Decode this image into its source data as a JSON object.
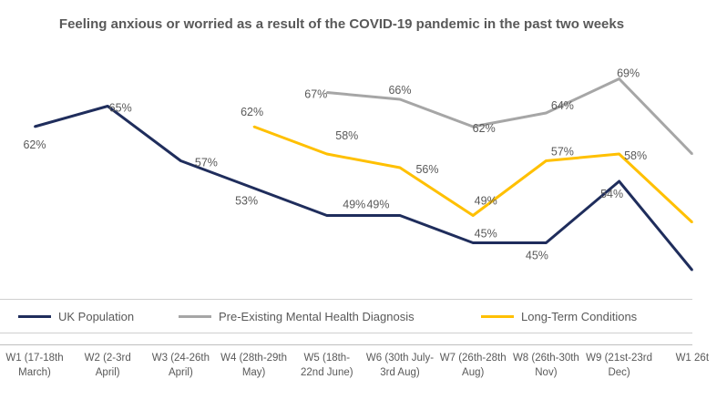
{
  "chart_data": {
    "type": "line",
    "title": "Feeling anxious or worried as a result of the COVID-19 pandemic in the past two weeks",
    "categories": [
      "W1 (17-18th March)",
      "W2 (2-3rd April)",
      "W3 (24-26th April)",
      "W4 (28th-29th May)",
      "W5 (18th-22nd June)",
      "W6 (30th July-3rd Aug)",
      "W7 (26th-28th Aug)",
      "W8 (26th-30th Nov)",
      "W9 (21st-23rd Dec)",
      "W1 26t"
    ],
    "series": [
      {
        "name": "UK Population",
        "color": "#1f2d5c",
        "values": [
          62,
          65,
          57,
          53,
          49,
          49,
          45,
          45,
          54,
          41
        ],
        "labels": [
          "62%",
          "65%",
          "57%",
          "53%",
          "49%",
          "49%",
          "45%",
          "45%",
          "54%",
          null
        ]
      },
      {
        "name": "Pre-Existing Mental Health Diagnosis",
        "color": "#a6a6a6",
        "values": [
          null,
          null,
          null,
          null,
          67,
          66,
          62,
          64,
          69,
          58
        ],
        "labels": [
          null,
          null,
          null,
          null,
          "67%",
          "66%",
          "62%",
          "64%",
          "69%",
          null
        ]
      },
      {
        "name": "Long-Term Conditions",
        "color": "#ffc000",
        "values": [
          null,
          null,
          null,
          62,
          58,
          56,
          49,
          57,
          58,
          48
        ],
        "labels": [
          null,
          null,
          null,
          "62%",
          "58%",
          "56%",
          "49%",
          "57%",
          "58%",
          null
        ]
      }
    ],
    "ylim": [
      40,
      72
    ],
    "legend_position": "bottom",
    "grid": false
  }
}
